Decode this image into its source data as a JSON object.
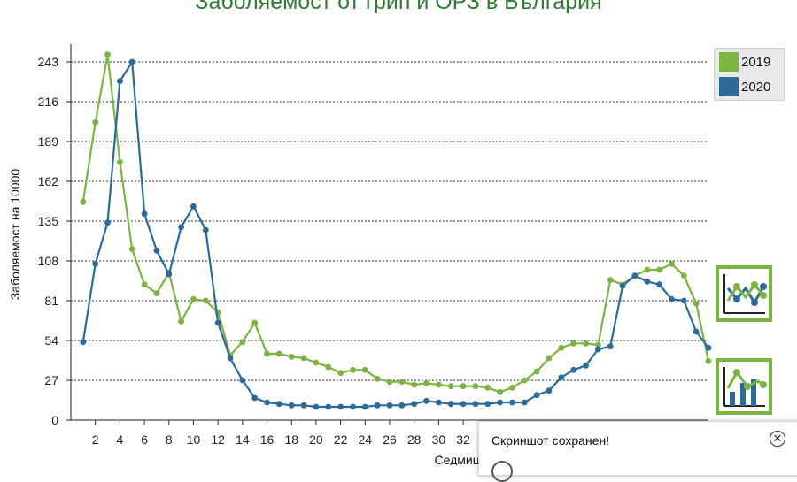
{
  "chart_data": {
    "type": "line",
    "title": "Заболяемост от грип и ОРЗ в България",
    "xlabel": "Седмица",
    "ylabel": "Заболяемост на 10000",
    "xlim": [
      0,
      52
    ],
    "ylim": [
      0,
      252
    ],
    "yticks": [
      0,
      27,
      54,
      81,
      108,
      135,
      162,
      189,
      216,
      243
    ],
    "xticks": [
      2,
      4,
      6,
      8,
      10,
      12,
      14,
      16,
      18,
      20,
      22,
      24,
      26,
      28,
      30,
      32
    ],
    "grid": true,
    "legend_position": "top-right",
    "series": [
      {
        "name": "2019",
        "color": "#7cb342",
        "x": [
          1,
          2,
          3,
          4,
          5,
          6,
          7,
          8,
          9,
          10,
          11,
          12,
          13,
          14,
          15,
          16,
          17,
          18,
          19,
          20,
          21,
          22,
          23,
          24,
          25,
          26,
          27,
          28,
          29,
          30,
          31,
          32,
          33,
          34,
          35,
          36,
          37,
          38,
          39,
          40,
          41,
          42,
          43,
          44,
          45,
          46,
          47,
          48,
          49,
          50,
          51,
          52
        ],
        "values": [
          148,
          202,
          248,
          175,
          116,
          92,
          86,
          100,
          67,
          82,
          81,
          73,
          44,
          53,
          66,
          45,
          45,
          43,
          42,
          39,
          36,
          32,
          34,
          34,
          28,
          26,
          26,
          24,
          25,
          24,
          23,
          23,
          23,
          22,
          19,
          22,
          27,
          33,
          42,
          49,
          52,
          52,
          51,
          95,
          92,
          98,
          102,
          102,
          106,
          98,
          79,
          40
        ]
      },
      {
        "name": "2020",
        "color": "#2b6a9b",
        "x": [
          1,
          2,
          3,
          4,
          5,
          6,
          7,
          8,
          9,
          10,
          11,
          12,
          13,
          14,
          15,
          16,
          17,
          18,
          19,
          20,
          21,
          22,
          23,
          24,
          25,
          26,
          27,
          28,
          29,
          30,
          31,
          32,
          33,
          34,
          35,
          36,
          37,
          38,
          39,
          40,
          41,
          42,
          43,
          44,
          45,
          46,
          47,
          48,
          49,
          50,
          51,
          52
        ],
        "values": [
          53,
          106,
          134,
          230,
          243,
          140,
          115,
          99,
          131,
          145,
          129,
          66,
          42,
          27,
          15,
          12,
          11,
          10,
          10,
          9,
          9,
          9,
          9,
          9,
          10,
          10,
          10,
          11,
          13,
          12,
          11,
          11,
          11,
          11,
          12,
          12,
          12,
          17,
          20,
          29,
          34,
          37,
          48,
          50,
          91,
          98,
          94,
          92,
          82,
          81,
          60,
          49
        ]
      }
    ]
  },
  "legend": {
    "items": [
      {
        "label": "2019",
        "color": "#7cb342"
      },
      {
        "label": "2020",
        "color": "#2b6a9b"
      }
    ]
  },
  "tools": {
    "line_chart_icon": "line-chart-icon",
    "bar_chart_icon": "bar-line-chart-icon"
  },
  "toast": {
    "title": "Скриншот сохранен!",
    "close_icon": "close-icon"
  }
}
